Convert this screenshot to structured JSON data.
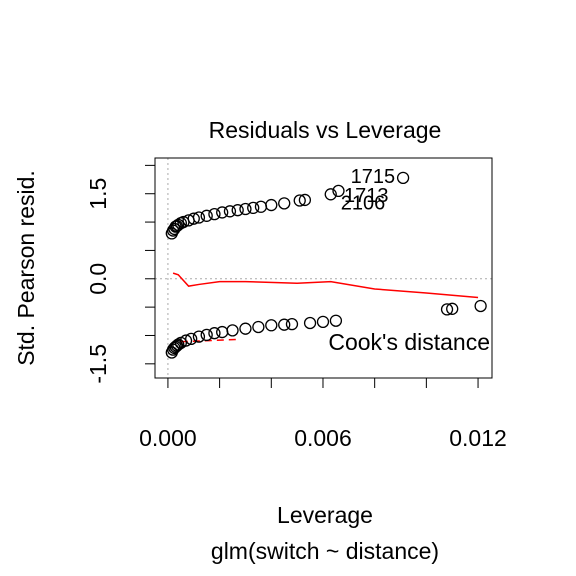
{
  "chart_data": {
    "type": "scatter",
    "title": "Residuals vs Leverage",
    "xlabel": "Leverage",
    "subtitle": "glm(switch ~ distance)",
    "ylabel": "Std. Pearson resid.",
    "xlim": [
      -0.0005,
      0.01254
    ],
    "ylim": [
      -1.75,
      2.13
    ],
    "xticks": [
      {
        "value": 0,
        "label": "0.000"
      },
      {
        "value": 0.006,
        "label": "0.006"
      },
      {
        "value": 0.012,
        "label": "0.012"
      }
    ],
    "xticks_unlabeled": [
      0.002,
      0.004,
      0.008,
      0.01
    ],
    "yticks": [
      {
        "value": -1.5,
        "label": "-1.5"
      },
      {
        "value": 0,
        "label": "0.0"
      },
      {
        "value": 1.5,
        "label": "1.5"
      }
    ],
    "yticks_unlabeled": [
      -1,
      -0.5,
      0.5,
      1,
      2
    ],
    "color": "#000000",
    "x": [
      0.00015,
      0.0002,
      0.00025,
      0.0003,
      0.00035,
      0.0004,
      0.0005,
      0.0006,
      0.0008,
      0.001,
      0.0012,
      0.0015,
      0.0018,
      0.0021,
      0.0024,
      0.0027,
      0.003,
      0.0033,
      0.0036,
      0.004,
      0.0045,
      0.0051,
      0.0053,
      0.0063,
      0.0066,
      0.0091,
      0.00015,
      0.0002,
      0.00025,
      0.0003,
      0.00035,
      0.0004,
      0.0005,
      0.0007,
      0.0009,
      0.0012,
      0.0015,
      0.0018,
      0.0021,
      0.0025,
      0.003,
      0.0035,
      0.004,
      0.0045,
      0.0048,
      0.0055,
      0.006,
      0.0065,
      0.0108,
      0.011,
      0.0121
    ],
    "y": [
      0.8,
      0.85,
      0.88,
      0.92,
      0.93,
      0.95,
      0.98,
      1.0,
      1.03,
      1.06,
      1.08,
      1.11,
      1.14,
      1.17,
      1.19,
      1.21,
      1.23,
      1.25,
      1.27,
      1.3,
      1.33,
      1.38,
      1.39,
      1.49,
      1.55,
      1.78,
      -1.3,
      -1.25,
      -1.22,
      -1.2,
      -1.18,
      -1.16,
      -1.13,
      -1.09,
      -1.06,
      -1.02,
      -0.99,
      -0.96,
      -0.94,
      -0.91,
      -0.88,
      -0.85,
      -0.82,
      -0.81,
      -0.8,
      -0.78,
      -0.76,
      -0.74,
      -0.54,
      -0.53,
      -0.48
    ],
    "point_labels": [
      {
        "index": 25,
        "label": "1715"
      },
      {
        "index": 24,
        "label": "1713"
      },
      {
        "index": 23,
        "label": "2106"
      }
    ],
    "smooth": {
      "color": "#ff0000",
      "x": [
        0.0002,
        0.0004,
        0.0008,
        0.0012,
        0.002,
        0.003,
        0.005,
        0.0063,
        0.008,
        0.01,
        0.012
      ],
      "y": [
        0.1,
        0.07,
        -0.13,
        -0.1,
        -0.05,
        -0.05,
        -0.08,
        -0.05,
        -0.18,
        -0.25,
        -0.33
      ]
    },
    "cooks_line": {
      "color": "#ff0000",
      "x": [
        0.0005,
        0.0027
      ],
      "y": [
        -1.11,
        -1.07
      ]
    },
    "legend": {
      "label": "Cook's distance",
      "position": "bottom-right"
    }
  }
}
